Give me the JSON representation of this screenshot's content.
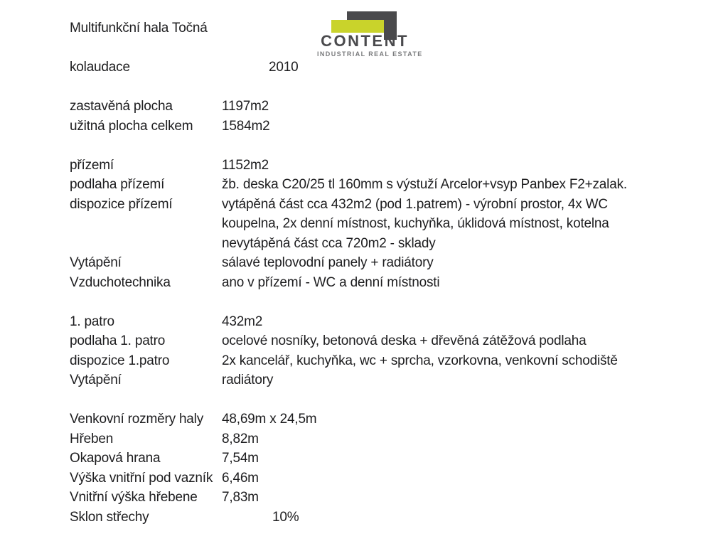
{
  "page": {
    "title": "Multifunkční hala Točná",
    "background": "#ffffff",
    "text_color": "#1d1d1f"
  },
  "logo": {
    "wordmark": "CONTENT",
    "tagline": "INDUSTRIAL REAL ESTATE",
    "colors": {
      "dark": "#4a4a4c",
      "accent": "#c9d32b",
      "tagline_gray": "#7a7b7d"
    }
  },
  "rows": [
    {
      "label": "kolaudace",
      "value": "2010"
    },
    {
      "label": "zastavěná plocha",
      "value": "1197m2"
    },
    {
      "label": "užitná plocha celkem",
      "value": "1584m2"
    },
    {
      "label": "přízemí",
      "value": "1152m2"
    },
    {
      "label": "podlaha přízemí",
      "value": "žb. deska C20/25 tl 160mm s výstuží Arcelor+vsyp Panbex F2+zalak."
    },
    {
      "label": "dispozice přízemí",
      "lines": [
        "vytápěná část cca 432m2 (pod 1.patrem) - výrobní prostor, 4x WC",
        "koupelna, 2x denní místnost, kuchyňka, úklidová místnost, kotelna",
        "nevytápěná část cca 720m2 - sklady"
      ]
    },
    {
      "label": "Vytápění",
      "value": "sálavé teplovodní panely + radiátory"
    },
    {
      "label": "Vzduchotechnika",
      "value": "ano v přízemí - WC a denní místnosti"
    },
    {
      "label": "1. patro",
      "value": "432m2"
    },
    {
      "label": "podlaha 1. patro",
      "value": "ocelové nosníky, betonová deska + dřevěná zátěžová podlaha"
    },
    {
      "label": "dispozice 1.patro",
      "value": "2x kancelář, kuchyňka, wc + sprcha, vzorkovna, venkovní schodiště"
    },
    {
      "label": "Vytápění",
      "value": "radiátory"
    },
    {
      "label": "Venkovní rozměry haly",
      "value": "48,69m x 24,5m"
    },
    {
      "label": "Hřeben",
      "value": "8,82m"
    },
    {
      "label": "Okapová hrana",
      "value": "7,54m"
    },
    {
      "label": "Výška vnitřní pod vazník",
      "value": "6,46m"
    },
    {
      "label": "Vnitřní výška hřebene",
      "value": "7,83m"
    },
    {
      "label": "Sklon střechy",
      "value": "10%"
    }
  ]
}
